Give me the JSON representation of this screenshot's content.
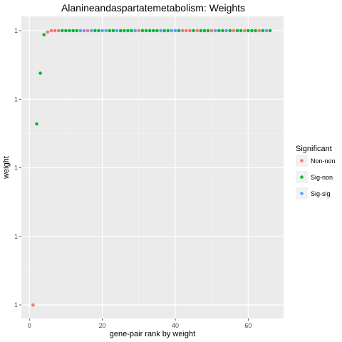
{
  "chart_data": {
    "type": "scatter",
    "title": "Alanineandaspartatemetabolism: Weights",
    "xlabel": "gene-pair rank by weight",
    "ylabel": "weight",
    "xlim": [
      -2.2,
      69.7
    ],
    "ylim": [
      0.99,
      1.0
    ],
    "x_ticks": [
      0,
      20,
      40,
      60
    ],
    "x_tick_labels": [
      "0",
      "20",
      "40",
      "60"
    ],
    "y_ticks": [
      0.99,
      0.9925,
      0.995,
      0.9975,
      1.0
    ],
    "y_tick_labels": [
      "1",
      "1",
      "1",
      "1",
      "1"
    ],
    "grid": true,
    "legend": {
      "title": "Significant",
      "position": "right",
      "entries": [
        {
          "label": "Non-non",
          "color": "#F8766D"
        },
        {
          "label": "Sig-non",
          "color": "#00BA38"
        },
        {
          "label": "Sig-sig",
          "color": "#619CFF"
        }
      ]
    },
    "series": [
      {
        "name": "Non-non",
        "color": "#F8766D",
        "points": [
          [
            1,
            0.99
          ],
          [
            5,
            0.99995
          ],
          [
            6,
            1.0
          ],
          [
            7,
            1.0
          ],
          [
            8,
            1.0
          ],
          [
            16,
            1.0
          ],
          [
            30,
            1.0
          ],
          [
            42,
            1.0
          ],
          [
            43,
            1.0
          ],
          [
            44,
            1.0
          ],
          [
            46,
            1.0
          ],
          [
            50,
            1.0
          ],
          [
            56,
            1.0
          ],
          [
            59,
            1.0
          ],
          [
            63,
            1.0
          ]
        ]
      },
      {
        "name": "Sig-non",
        "color": "#00BA38",
        "points": [
          [
            2,
            0.9966
          ],
          [
            3,
            0.99845
          ],
          [
            4,
            0.99985
          ],
          [
            9,
            1.0
          ],
          [
            10,
            1.0
          ],
          [
            11,
            1.0
          ],
          [
            12,
            1.0
          ],
          [
            13,
            1.0
          ],
          [
            18,
            1.0
          ],
          [
            19,
            1.0
          ],
          [
            22,
            1.0
          ],
          [
            23,
            1.0
          ],
          [
            25,
            1.0
          ],
          [
            26,
            1.0
          ],
          [
            27,
            1.0
          ],
          [
            28,
            1.0
          ],
          [
            31,
            1.0
          ],
          [
            32,
            1.0
          ],
          [
            33,
            1.0
          ],
          [
            34,
            1.0
          ],
          [
            35,
            1.0
          ],
          [
            37,
            1.0
          ],
          [
            38,
            1.0
          ],
          [
            41,
            1.0
          ],
          [
            45,
            1.0
          ],
          [
            47,
            1.0
          ],
          [
            48,
            1.0
          ],
          [
            49,
            1.0
          ],
          [
            52,
            1.0
          ],
          [
            53,
            1.0
          ],
          [
            55,
            1.0
          ],
          [
            57,
            1.0
          ],
          [
            58,
            1.0
          ],
          [
            60,
            1.0
          ],
          [
            61,
            1.0
          ],
          [
            62,
            1.0
          ],
          [
            64,
            1.0
          ],
          [
            66,
            1.0
          ]
        ]
      },
      {
        "name": "Sig-sig",
        "color": "#619CFF",
        "points": [
          [
            14,
            1.0
          ],
          [
            15,
            1.0
          ],
          [
            17,
            1.0
          ],
          [
            20,
            1.0
          ],
          [
            21,
            1.0
          ],
          [
            24,
            1.0
          ],
          [
            29,
            1.0
          ],
          [
            36,
            1.0
          ],
          [
            39,
            1.0
          ],
          [
            40,
            1.0
          ],
          [
            51,
            1.0
          ],
          [
            54,
            1.0
          ],
          [
            65,
            1.0
          ]
        ]
      }
    ]
  }
}
